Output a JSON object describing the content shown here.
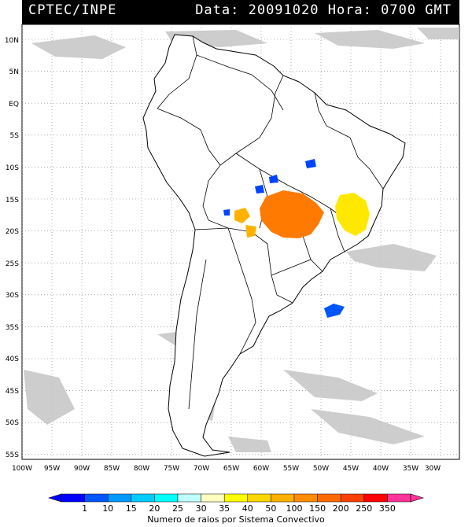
{
  "header": {
    "source": "CPTEC/INPE",
    "datetime": "Data: 20091020 Hora: 0700 GMT"
  },
  "map": {
    "lat_ticks": [
      "10N",
      "5N",
      "EQ",
      "5S",
      "10S",
      "15S",
      "20S",
      "25S",
      "30S",
      "35S",
      "40S",
      "45S",
      "50S",
      "55S"
    ],
    "lon_ticks": [
      "100W",
      "95W",
      "90W",
      "85W",
      "80W",
      "75W",
      "70W",
      "65W",
      "60W",
      "55W",
      "50W",
      "45W",
      "40W",
      "35W",
      "30W"
    ],
    "lat_range": [
      11,
      -56
    ],
    "lon_range": [
      -100,
      -27
    ],
    "gridlines": "dotted",
    "cloud_color": "#c8c8c8",
    "coastline_color": "#000000"
  },
  "legend": {
    "title": "Numero de raios por Sistema Convectivo",
    "labels": [
      "1",
      "10",
      "15",
      "20",
      "25",
      "30",
      "35",
      "40",
      "50",
      "100",
      "150",
      "200",
      "250",
      "350"
    ],
    "colors": [
      "#0000ff",
      "#0055ff",
      "#0099ff",
      "#00ccff",
      "#00ffff",
      "#bfffff",
      "#ffffbf",
      "#ffff00",
      "#ffd700",
      "#ffb000",
      "#ff8c00",
      "#ff6a00",
      "#ff4000",
      "#ff0000",
      "#ff3399"
    ]
  },
  "storm_systems": [
    {
      "label": "central-brazil-system",
      "color": "#ff7a00",
      "lon": -56.5,
      "lat": -17.5
    },
    {
      "label": "minas-gerais-system",
      "color": "#ffe800",
      "lon": -43.5,
      "lat": -17.5
    },
    {
      "label": "small-orange-1",
      "color": "#ffb300",
      "lon": -62,
      "lat": -19
    },
    {
      "label": "small-orange-2",
      "color": "#ffb300",
      "lon": -60.5,
      "lat": -20.5
    },
    {
      "label": "blue-cell-1",
      "color": "#0044ff",
      "lon": -48.5,
      "lat": -9.5
    },
    {
      "label": "blue-cell-2",
      "color": "#0044ff",
      "lon": -54,
      "lat": -14
    },
    {
      "label": "blue-cell-3",
      "color": "#0044ff",
      "lon": -58.5,
      "lat": -15.5
    },
    {
      "label": "blue-cell-4",
      "color": "#0044ff",
      "lon": -66.5,
      "lat": -17.5
    },
    {
      "label": "blue-cell-atlantic",
      "color": "#0055ff",
      "lon": -46.5,
      "lat": -33
    }
  ]
}
